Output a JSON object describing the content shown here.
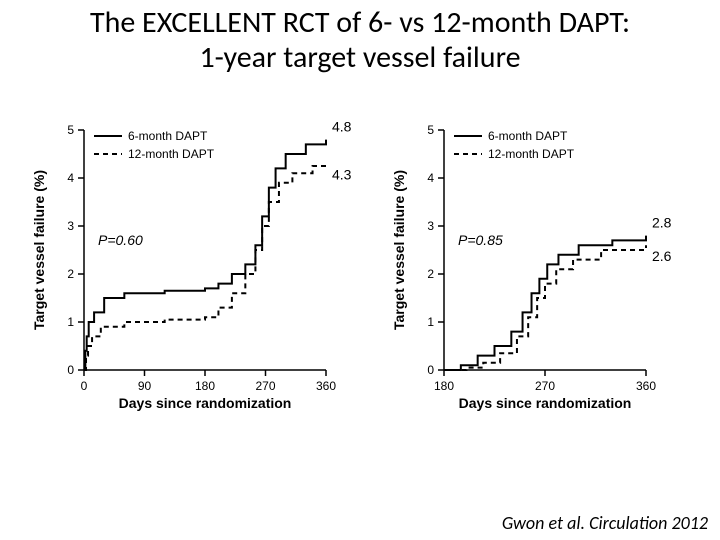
{
  "title_line1": "The EXCELLENT RCT of  6- vs 12-month DAPT:",
  "title_line2": "1-year target vessel failure",
  "citation": "Gwon et al. Circulation 2012",
  "common": {
    "ylabel": "Target vessel failure (%)",
    "xlabel": "Days since randomization",
    "legend_solid": "6-month DAPT",
    "legend_dash": "12-month DAPT",
    "line_color": "#000000",
    "axis_color": "#000000",
    "background_color": "#ffffff",
    "axis_fontsize": 12,
    "label_fontsize": 14,
    "annotation_fontsize": 14,
    "line_width": 2
  },
  "chart_left": {
    "type": "step-line",
    "xlim": [
      0,
      360
    ],
    "xticks": [
      0,
      90,
      180,
      270,
      360
    ],
    "ylim": [
      0,
      5
    ],
    "yticks": [
      0,
      1,
      2,
      3,
      4,
      5
    ],
    "p_text": "P=0.60",
    "end_label_solid": "4.8",
    "end_label_dash": "4.3",
    "series_solid": [
      [
        0,
        0
      ],
      [
        2,
        0.4
      ],
      [
        4,
        0.7
      ],
      [
        7,
        1.0
      ],
      [
        15,
        1.2
      ],
      [
        30,
        1.5
      ],
      [
        60,
        1.6
      ],
      [
        120,
        1.65
      ],
      [
        180,
        1.7
      ],
      [
        200,
        1.8
      ],
      [
        220,
        2.0
      ],
      [
        240,
        2.2
      ],
      [
        255,
        2.6
      ],
      [
        265,
        3.2
      ],
      [
        275,
        3.8
      ],
      [
        285,
        4.2
      ],
      [
        300,
        4.5
      ],
      [
        330,
        4.7
      ],
      [
        360,
        4.8
      ]
    ],
    "series_dash": [
      [
        0,
        0
      ],
      [
        3,
        0.3
      ],
      [
        6,
        0.5
      ],
      [
        12,
        0.7
      ],
      [
        25,
        0.9
      ],
      [
        60,
        1.0
      ],
      [
        120,
        1.05
      ],
      [
        180,
        1.1
      ],
      [
        200,
        1.3
      ],
      [
        220,
        1.6
      ],
      [
        240,
        2.0
      ],
      [
        255,
        2.5
      ],
      [
        265,
        3.0
      ],
      [
        275,
        3.5
      ],
      [
        290,
        3.9
      ],
      [
        310,
        4.1
      ],
      [
        340,
        4.25
      ],
      [
        360,
        4.3
      ]
    ]
  },
  "chart_right": {
    "type": "step-line",
    "xlim": [
      180,
      360
    ],
    "xticks": [
      180,
      270,
      360
    ],
    "ylim": [
      0,
      5
    ],
    "yticks": [
      0,
      1,
      2,
      3,
      4,
      5
    ],
    "p_text": "P=0.85",
    "end_label_solid": "2.8",
    "end_label_dash": "2.6",
    "series_solid": [
      [
        180,
        0
      ],
      [
        195,
        0.1
      ],
      [
        210,
        0.3
      ],
      [
        225,
        0.5
      ],
      [
        240,
        0.8
      ],
      [
        250,
        1.2
      ],
      [
        258,
        1.6
      ],
      [
        265,
        1.9
      ],
      [
        272,
        2.2
      ],
      [
        282,
        2.4
      ],
      [
        300,
        2.6
      ],
      [
        330,
        2.7
      ],
      [
        360,
        2.8
      ]
    ],
    "series_dash": [
      [
        180,
        0
      ],
      [
        200,
        0.05
      ],
      [
        215,
        0.15
      ],
      [
        230,
        0.35
      ],
      [
        245,
        0.7
      ],
      [
        255,
        1.1
      ],
      [
        263,
        1.5
      ],
      [
        270,
        1.8
      ],
      [
        280,
        2.1
      ],
      [
        295,
        2.3
      ],
      [
        320,
        2.5
      ],
      [
        360,
        2.6
      ]
    ]
  }
}
